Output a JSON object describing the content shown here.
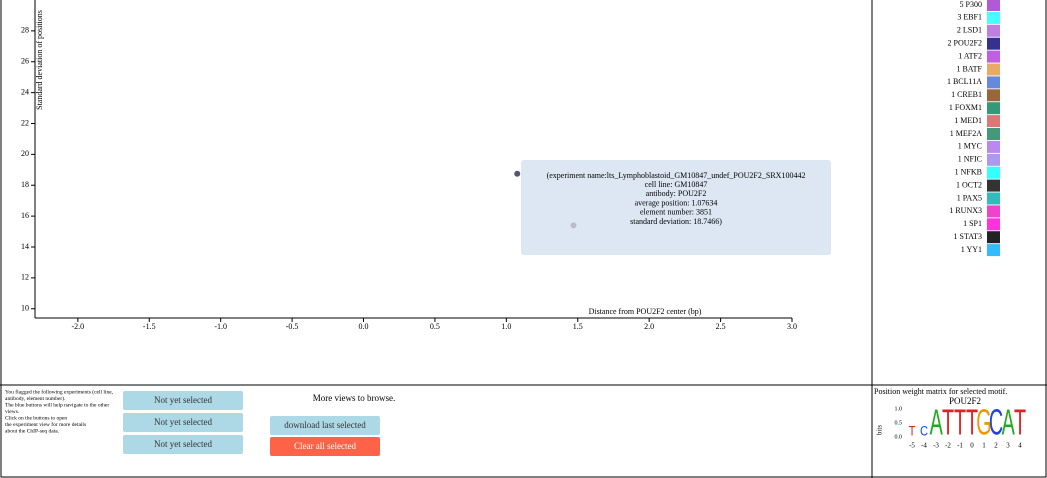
{
  "chart_data": {
    "type": "scatter",
    "y_label": "Standard deviation of positions",
    "x_label": "Distance from POU2F2 center (bp)",
    "x": [
      1.07634,
      1.47
    ],
    "values": [
      18.7466,
      15.4
    ],
    "colors": [
      "#555577",
      "#bbbbcc"
    ],
    "xlim": [
      -2.3,
      3.0
    ],
    "ylim": [
      9.4,
      30
    ],
    "xticks": [
      {
        "value": -2,
        "label": "-2.0"
      },
      {
        "value": -1.5,
        "label": "-1.5"
      },
      {
        "value": -1,
        "label": "-1.0"
      },
      {
        "value": -0.5,
        "label": "-0.5"
      },
      {
        "value": 0,
        "label": "0.0"
      },
      0.5,
      {
        "value": 1,
        "label": "1.0"
      },
      1.5,
      {
        "value": 2,
        "label": "2.0"
      },
      2.5,
      {
        "value": 3,
        "label": "3.0"
      }
    ],
    "yticks": [
      10,
      12,
      14,
      16,
      18,
      20,
      22,
      24,
      26,
      28
    ]
  },
  "tooltip": [
    "(experiment name:lts_Lymphoblastoid_GM10847_undef_POU2F2_SRX100442",
    "cell line: GM10847",
    "antibody: POU2F2",
    "average position: 1.07634",
    "element number: 3851",
    "standard deviation: 18.7466)"
  ],
  "legend": [
    {
      "label": "5 P300",
      "color": "#b05ad6"
    },
    {
      "label": "3 EBF1",
      "color": "#44ffff"
    },
    {
      "label": "2 LSD1",
      "color": "#c07ee0"
    },
    {
      "label": "2 POU2F2",
      "color": "#33338f"
    },
    {
      "label": "1 ATF2",
      "color": "#c060e0"
    },
    {
      "label": "1 BATF",
      "color": "#e8aa66"
    },
    {
      "label": "1 BCL11A",
      "color": "#6688dd"
    },
    {
      "label": "1 CREB1",
      "color": "#99663a"
    },
    {
      "label": "1 FOXM1",
      "color": "#339977"
    },
    {
      "label": "1 MED1",
      "color": "#dd7777"
    },
    {
      "label": "1 MEF2A",
      "color": "#44997a"
    },
    {
      "label": "1 MYC",
      "color": "#bb88ee"
    },
    {
      "label": "1 NFIC",
      "color": "#aa99ee"
    },
    {
      "label": "1 NFKB",
      "color": "#33ffff"
    },
    {
      "label": "1 OCT2",
      "color": "#333333"
    },
    {
      "label": "1 PAX5",
      "color": "#33bbbb"
    },
    {
      "label": "1 RUNX3",
      "color": "#ee44cc"
    },
    {
      "label": "1 SP1",
      "color": "#ff33dd"
    },
    {
      "label": "1 STAT3",
      "color": "#222222"
    },
    {
      "label": "1 YY1",
      "color": "#33bbff"
    }
  ],
  "panel": {
    "instructions": [
      "You flagged the following experiments (cell line,",
      "antibody, element number).",
      "The blue buttons will help navigate to the other",
      "views.",
      "Click on the buttons to open",
      "the experiment view for more details",
      "about the ChIP-seq data."
    ],
    "selected": [
      "Not yet selected",
      "Not yet selected",
      "Not yet selected"
    ],
    "more_views": "More views to browse.",
    "download": "download last selected",
    "clear": "Clear all selected"
  },
  "motif": {
    "title": "Position weight matrix for selected motif.",
    "name": "POU2F2",
    "y_label": "bits",
    "yticks": [
      "1.0",
      "0.5",
      "0.0"
    ],
    "letters": [
      "T",
      "C",
      "A",
      "T",
      "T",
      "T",
      "G",
      "C",
      "A",
      "T"
    ],
    "positions": [
      "-5",
      "-4",
      "-3",
      "-2",
      "-1",
      "0",
      "1",
      "2",
      "3",
      "4"
    ]
  }
}
